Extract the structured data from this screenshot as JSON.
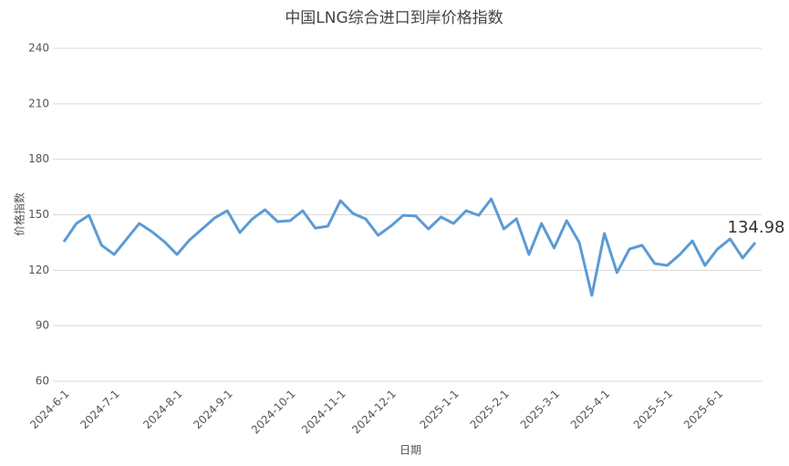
{
  "chart_data": {
    "type": "line",
    "title": "中国LNG综合进口到岸价格指数",
    "x_label": "日期",
    "y_label": "价格指数",
    "color": "#5b9bd5",
    "categories": [
      "2024-6-1",
      null,
      null,
      null,
      "2024-7-1",
      null,
      null,
      null,
      null,
      "2024-8-1",
      null,
      null,
      null,
      "2024-9-1",
      null,
      null,
      null,
      null,
      "2024-10-1",
      null,
      null,
      null,
      "2024-11-1",
      null,
      null,
      null,
      "2024-12-1",
      null,
      null,
      null,
      null,
      "2025-1-1",
      null,
      null,
      null,
      "2025-2-1",
      null,
      null,
      null,
      "2025-3-1",
      null,
      null,
      null,
      "2025-4-1",
      null,
      null,
      null,
      null,
      "2025-5-1",
      null,
      null,
      null,
      "2025-6-1",
      null,
      null,
      null
    ],
    "values": [
      135.4,
      145.3,
      149.7,
      133.5,
      128.5,
      136.9,
      145.3,
      140.9,
      135.4,
      128.5,
      136.4,
      142.3,
      148.3,
      152.2,
      140.4,
      147.8,
      152.7,
      146.3,
      146.8,
      152.2,
      142.8,
      143.8,
      157.6,
      150.7,
      147.8,
      138.9,
      143.8,
      149.7,
      149.3,
      142.3,
      148.8,
      145.3,
      152.2,
      149.7,
      158.6,
      142.3,
      147.8,
      128.5,
      145.3,
      132.0,
      146.8,
      135.0,
      106.4,
      139.9,
      118.7,
      131.5,
      133.5,
      123.6,
      122.6,
      128.5,
      135.9,
      122.6,
      131.5,
      136.9,
      126.6,
      134.98
    ],
    "ylim": [
      60,
      240
    ],
    "yticks": [
      60,
      90,
      120,
      150,
      180,
      210,
      240
    ],
    "grid": true
  }
}
